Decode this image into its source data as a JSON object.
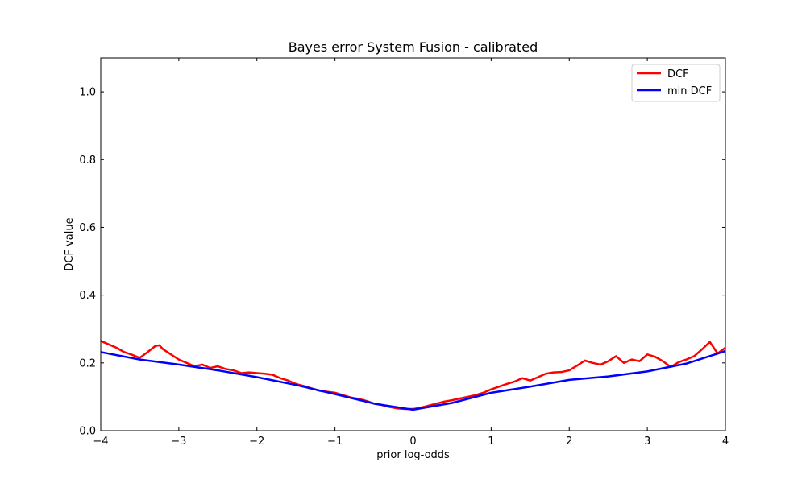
{
  "chart_data": {
    "type": "line",
    "title": "Bayes error System Fusion - calibrated",
    "xlabel": "prior log-odds",
    "ylabel": "DCF value",
    "xlim": [
      -4,
      4
    ],
    "ylim": [
      0,
      1.1
    ],
    "xticks": [
      -4,
      -3,
      -2,
      -1,
      0,
      1,
      2,
      3,
      4
    ],
    "xtick_labels": [
      "−4",
      "−3",
      "−2",
      "−1",
      "0",
      "1",
      "2",
      "3",
      "4"
    ],
    "yticks": [
      0,
      0.2,
      0.4,
      0.6,
      0.8,
      1.0
    ],
    "ytick_labels": [
      "0.0",
      "0.2",
      "0.4",
      "0.6",
      "0.8",
      "1.0"
    ],
    "grid": false,
    "legend_position": "top-right",
    "series": [
      {
        "name": "DCF",
        "color": "#ff0000",
        "x": [
          -4.0,
          -3.9,
          -3.8,
          -3.7,
          -3.6,
          -3.5,
          -3.4,
          -3.3,
          -3.25,
          -3.2,
          -3.1,
          -3.0,
          -2.9,
          -2.8,
          -2.7,
          -2.6,
          -2.5,
          -2.4,
          -2.3,
          -2.2,
          -2.1,
          -2.0,
          -1.9,
          -1.8,
          -1.7,
          -1.6,
          -1.5,
          -1.4,
          -1.3,
          -1.2,
          -1.1,
          -1.0,
          -0.9,
          -0.8,
          -0.7,
          -0.6,
          -0.5,
          -0.4,
          -0.3,
          -0.2,
          -0.1,
          0.0,
          0.1,
          0.2,
          0.3,
          0.4,
          0.5,
          0.6,
          0.7,
          0.8,
          0.9,
          1.0,
          1.1,
          1.2,
          1.3,
          1.4,
          1.5,
          1.6,
          1.7,
          1.8,
          1.9,
          2.0,
          2.1,
          2.2,
          2.3,
          2.4,
          2.5,
          2.6,
          2.7,
          2.8,
          2.9,
          3.0,
          3.1,
          3.2,
          3.3,
          3.4,
          3.5,
          3.6,
          3.7,
          3.8,
          3.9,
          4.0
        ],
        "values": [
          0.265,
          0.255,
          0.245,
          0.232,
          0.224,
          0.215,
          0.232,
          0.25,
          0.252,
          0.24,
          0.225,
          0.21,
          0.2,
          0.19,
          0.195,
          0.185,
          0.19,
          0.182,
          0.178,
          0.17,
          0.172,
          0.17,
          0.168,
          0.165,
          0.155,
          0.148,
          0.138,
          0.132,
          0.125,
          0.118,
          0.115,
          0.112,
          0.105,
          0.098,
          0.094,
          0.088,
          0.08,
          0.076,
          0.07,
          0.066,
          0.064,
          0.064,
          0.068,
          0.074,
          0.08,
          0.086,
          0.09,
          0.095,
          0.1,
          0.105,
          0.112,
          0.122,
          0.13,
          0.138,
          0.145,
          0.155,
          0.148,
          0.158,
          0.168,
          0.172,
          0.173,
          0.178,
          0.192,
          0.207,
          0.2,
          0.195,
          0.205,
          0.22,
          0.2,
          0.21,
          0.205,
          0.225,
          0.218,
          0.205,
          0.188,
          0.202,
          0.21,
          0.22,
          0.24,
          0.262,
          0.228,
          0.245
        ]
      },
      {
        "name": "min DCF",
        "color": "#0000ff",
        "x": [
          -4.0,
          -3.5,
          -3.0,
          -2.5,
          -2.0,
          -1.5,
          -1.0,
          -0.5,
          0.0,
          0.5,
          1.0,
          1.5,
          2.0,
          2.5,
          3.0,
          3.5,
          4.0
        ],
        "values": [
          0.232,
          0.21,
          0.195,
          0.178,
          0.158,
          0.135,
          0.108,
          0.08,
          0.062,
          0.082,
          0.112,
          0.13,
          0.15,
          0.16,
          0.175,
          0.198,
          0.235
        ]
      }
    ]
  }
}
